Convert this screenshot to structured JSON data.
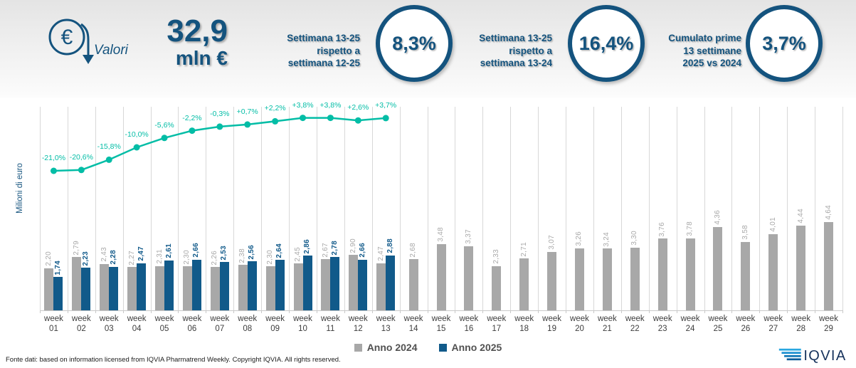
{
  "header": {
    "icon_label": "Valori",
    "total_value": "32,9",
    "total_unit": "mln €",
    "kpis": [
      {
        "label_lines": [
          "Settimana 13-25",
          "rispetto a",
          "settimana 12-25"
        ],
        "value": "8,3%"
      },
      {
        "label_lines": [
          "Settimana 13-25",
          "rispetto a",
          "settimana 13-24"
        ],
        "value": "16,4%"
      },
      {
        "label_lines": [
          "Cumulato prime",
          "13 settimane",
          "2025 vs 2024"
        ],
        "value": "3,7%"
      }
    ]
  },
  "colors": {
    "navy": "#14537e",
    "bar_2024": "#a8a8a8",
    "bar_2025": "#115a8a",
    "line_teal": "#03bda6",
    "gridline": "#d8d8d8"
  },
  "chart_data": {
    "type": "bar",
    "title": "",
    "ylabel": "Milioni di euro",
    "xlabel": "",
    "week_prefix": "week",
    "categories": [
      "01",
      "02",
      "03",
      "04",
      "05",
      "06",
      "07",
      "08",
      "09",
      "10",
      "11",
      "12",
      "13",
      "14",
      "15",
      "16",
      "17",
      "18",
      "19",
      "20",
      "21",
      "22",
      "23",
      "24",
      "25",
      "26",
      "27",
      "28",
      "29"
    ],
    "ylim": [
      0,
      5
    ],
    "grid": "vertical",
    "legend_position": "bottom",
    "series": [
      {
        "name": "Anno 2024",
        "values": [
          2.2,
          2.79,
          2.43,
          2.27,
          2.31,
          2.3,
          2.26,
          2.38,
          2.3,
          2.45,
          2.67,
          2.9,
          2.47,
          2.68,
          3.48,
          3.37,
          2.33,
          2.71,
          3.07,
          3.26,
          3.24,
          3.3,
          3.76,
          3.78,
          4.36,
          3.58,
          4.01,
          4.44,
          4.64
        ],
        "labels": [
          "2,20",
          "2,79",
          "2,43",
          "2,27",
          "2,31",
          "2,30",
          "2,26",
          "2,38",
          "2,30",
          "2,45",
          "2,67",
          "2,90",
          "2,47",
          "2,68",
          "3,48",
          "3,37",
          "2,33",
          "2,71",
          "3,07",
          "3,26",
          "3,24",
          "3,30",
          "3,76",
          "3,78",
          "4,36",
          "3,58",
          "4,01",
          "4,44",
          "4,64"
        ]
      },
      {
        "name": "Anno 2025",
        "values": [
          1.74,
          2.23,
          2.28,
          2.47,
          2.61,
          2.66,
          2.53,
          2.56,
          2.64,
          2.86,
          2.78,
          2.66,
          2.88
        ],
        "labels": [
          "1,74",
          "2,23",
          "2,28",
          "2,47",
          "2,61",
          "2,66",
          "2,53",
          "2,56",
          "2,64",
          "2,86",
          "2,78",
          "2,66",
          "2,88"
        ]
      }
    ],
    "line_series": {
      "name": "Variazione % 2025 vs 2024",
      "values": [
        -21.0,
        -20.6,
        -15.8,
        -10.0,
        -5.6,
        -2.2,
        -0.3,
        0.7,
        2.2,
        3.8,
        3.8,
        2.6,
        3.7
      ],
      "labels": [
        "-21,0%",
        "-20,6%",
        "-15,8%",
        "-10,0%",
        "-5,6%",
        "-2,2%",
        "-0,3%",
        "+0,7%",
        "+2,2%",
        "+3,8%",
        "+3,8%",
        "+2,6%",
        "+3,7%"
      ]
    }
  },
  "legend": [
    {
      "label": "Anno 2024"
    },
    {
      "label": "Anno 2025"
    }
  ],
  "footer": {
    "source": "Fonte dati: based on information licensed from IQVIA Pharmatrend Weekly. Copyright IQVIA. All rights reserved.",
    "logo_text": "IQVIA"
  }
}
